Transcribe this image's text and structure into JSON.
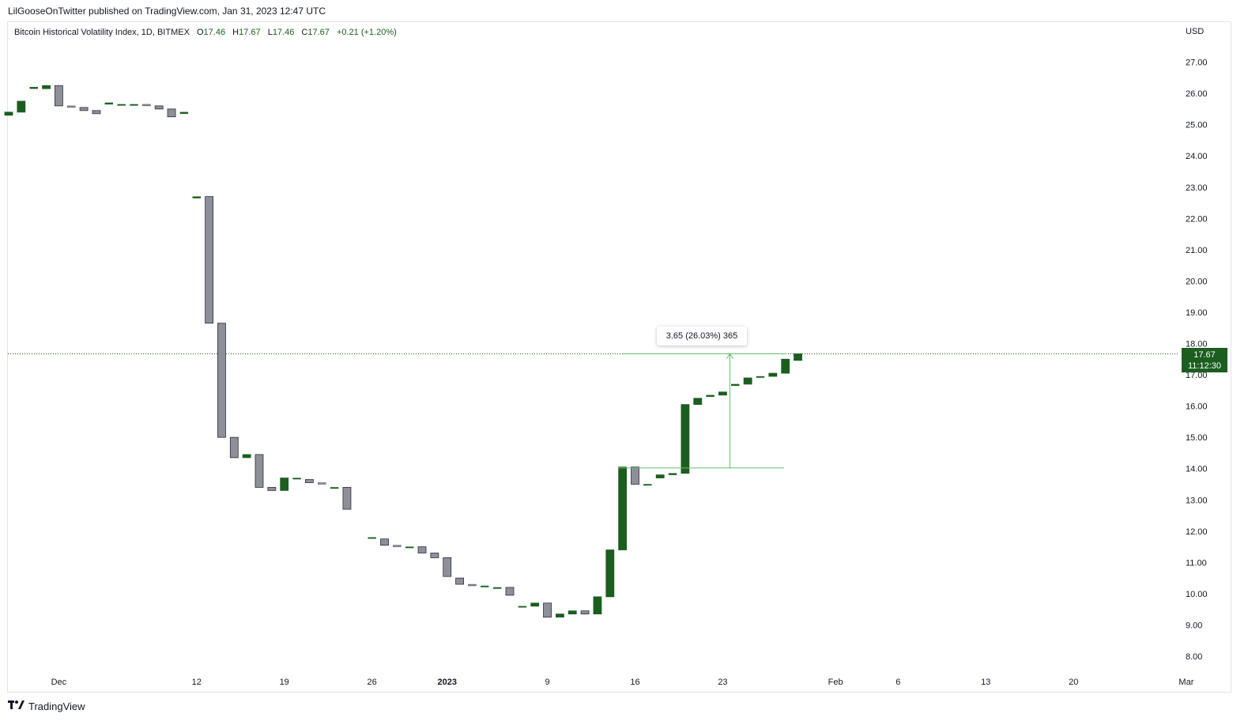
{
  "header": {
    "published": "LilGooseOnTwitter published on TradingView.com, Jan 31, 2023 12:47 UTC"
  },
  "legend": {
    "symbol": "Bitcoin Historical Volatility Index, 1D, BITMEX",
    "o_label": "O",
    "o_value": "17.46",
    "h_label": "H",
    "h_value": "17.67",
    "l_label": "L",
    "l_value": "17.46",
    "c_label": "C",
    "c_value": "17.67",
    "change": "+0.21 (+1.20%)"
  },
  "currency": "USD",
  "price_tag": {
    "price": "17.67",
    "countdown": "11:12:30"
  },
  "measure": {
    "label": "3.65 (26.03%) 365"
  },
  "footer": {
    "brand": "TradingView",
    "logo_icon": "tradingview-logo-icon"
  },
  "colors": {
    "up": "#1b5e20",
    "down": "#8e9099",
    "measure": "#66bb6a",
    "price_line": "#1b5e20"
  },
  "chart_data": {
    "type": "candlestick",
    "title": "Bitcoin Historical Volatility Index, 1D, BITMEX",
    "ylim": [
      7.6,
      28.1
    ],
    "y_ticks": [
      "27.00",
      "26.00",
      "25.00",
      "24.00",
      "23.00",
      "22.00",
      "21.00",
      "20.00",
      "19.00",
      "18.00",
      "17.00",
      "16.00",
      "15.00",
      "14.00",
      "13.00",
      "12.00",
      "11.00",
      "10.00",
      "9.00",
      "8.00"
    ],
    "x_ticks": [
      "Dec",
      "12",
      "19",
      "26",
      "2023",
      "9",
      "16",
      "23",
      "Feb",
      "6",
      "13",
      "20",
      "Mar"
    ],
    "candles": [
      {
        "date": "2022-11-27",
        "open": 25.3,
        "close": 25.4
      },
      {
        "date": "2022-11-28",
        "open": 25.4,
        "close": 25.75
      },
      {
        "date": "2022-11-29",
        "open": 26.15,
        "close": 26.2
      },
      {
        "date": "2022-11-30",
        "open": 26.15,
        "close": 26.25
      },
      {
        "date": "2022-12-01",
        "open": 26.25,
        "close": 25.6
      },
      {
        "date": "2022-12-02",
        "open": 25.6,
        "close": 25.55
      },
      {
        "date": "2022-12-03",
        "open": 25.55,
        "close": 25.45
      },
      {
        "date": "2022-12-04",
        "open": 25.45,
        "close": 25.35
      },
      {
        "date": "2022-12-05",
        "open": 25.65,
        "close": 25.7
      },
      {
        "date": "2022-12-06",
        "open": 25.65,
        "close": 25.65
      },
      {
        "date": "2022-12-07",
        "open": 25.65,
        "close": 25.65
      },
      {
        "date": "2022-12-08",
        "open": 25.65,
        "close": 25.6
      },
      {
        "date": "2022-12-09",
        "open": 25.6,
        "close": 25.5
      },
      {
        "date": "2022-12-10",
        "open": 25.5,
        "close": 25.25
      },
      {
        "date": "2022-12-11",
        "open": 25.35,
        "close": 25.4
      },
      {
        "date": "2022-12-12",
        "open": 22.65,
        "close": 22.7
      },
      {
        "date": "2022-12-13",
        "open": 22.7,
        "close": 18.65
      },
      {
        "date": "2022-12-14",
        "open": 18.65,
        "close": 15.0
      },
      {
        "date": "2022-12-15",
        "open": 15.0,
        "close": 14.35
      },
      {
        "date": "2022-12-16",
        "open": 14.35,
        "close": 14.45
      },
      {
        "date": "2022-12-17",
        "open": 14.45,
        "close": 13.4
      },
      {
        "date": "2022-12-18",
        "open": 13.4,
        "close": 13.3
      },
      {
        "date": "2022-12-19",
        "open": 13.3,
        "close": 13.7
      },
      {
        "date": "2022-12-20",
        "open": 13.7,
        "close": 13.7
      },
      {
        "date": "2022-12-21",
        "open": 13.65,
        "close": 13.55
      },
      {
        "date": "2022-12-22",
        "open": 13.55,
        "close": 13.5
      },
      {
        "date": "2022-12-23",
        "open": 13.4,
        "close": 13.4
      },
      {
        "date": "2022-12-24",
        "open": 13.4,
        "close": 12.7
      },
      {
        "date": "2022-12-26",
        "open": 11.8,
        "close": 11.8
      },
      {
        "date": "2022-12-27",
        "open": 11.75,
        "close": 11.55
      },
      {
        "date": "2022-12-28",
        "open": 11.55,
        "close": 11.5
      },
      {
        "date": "2022-12-29",
        "open": 11.5,
        "close": 11.5
      },
      {
        "date": "2022-12-30",
        "open": 11.5,
        "close": 11.3
      },
      {
        "date": "2022-12-31",
        "open": 11.3,
        "close": 11.15
      },
      {
        "date": "2023-01-01",
        "open": 11.15,
        "close": 10.55
      },
      {
        "date": "2023-01-02",
        "open": 10.5,
        "close": 10.3
      },
      {
        "date": "2023-01-03",
        "open": 10.3,
        "close": 10.25
      },
      {
        "date": "2023-01-04",
        "open": 10.25,
        "close": 10.25
      },
      {
        "date": "2023-01-05",
        "open": 10.2,
        "close": 10.2
      },
      {
        "date": "2023-01-06",
        "open": 10.2,
        "close": 9.95
      },
      {
        "date": "2023-01-07",
        "open": 9.6,
        "close": 9.6
      },
      {
        "date": "2023-01-08",
        "open": 9.6,
        "close": 9.7
      },
      {
        "date": "2023-01-09",
        "open": 9.7,
        "close": 9.25
      },
      {
        "date": "2023-01-10",
        "open": 9.25,
        "close": 9.35
      },
      {
        "date": "2023-01-11",
        "open": 9.35,
        "close": 9.45
      },
      {
        "date": "2023-01-12",
        "open": 9.45,
        "close": 9.35
      },
      {
        "date": "2023-01-13",
        "open": 9.35,
        "close": 9.9
      },
      {
        "date": "2023-01-14",
        "open": 9.9,
        "close": 11.4
      },
      {
        "date": "2023-01-15",
        "open": 11.4,
        "close": 14.05
      },
      {
        "date": "2023-01-16",
        "open": 14.05,
        "close": 13.5
      },
      {
        "date": "2023-01-17",
        "open": 13.5,
        "close": 13.5
      },
      {
        "date": "2023-01-18",
        "open": 13.7,
        "close": 13.8
      },
      {
        "date": "2023-01-19",
        "open": 13.8,
        "close": 13.85
      },
      {
        "date": "2023-01-20",
        "open": 13.85,
        "close": 16.05
      },
      {
        "date": "2023-01-21",
        "open": 16.05,
        "close": 16.25
      },
      {
        "date": "2023-01-22",
        "open": 16.3,
        "close": 16.35
      },
      {
        "date": "2023-01-23",
        "open": 16.35,
        "close": 16.45
      },
      {
        "date": "2023-01-24",
        "open": 16.65,
        "close": 16.7
      },
      {
        "date": "2023-01-25",
        "open": 16.7,
        "close": 16.9
      },
      {
        "date": "2023-01-26",
        "open": 16.95,
        "close": 16.95
      },
      {
        "date": "2023-01-27",
        "open": 16.95,
        "close": 17.05
      },
      {
        "date": "2023-01-28",
        "open": 17.05,
        "close": 17.5
      },
      {
        "date": "2023-01-29",
        "open": 17.46,
        "close": 17.67
      }
    ],
    "last_price": 17.67,
    "measure": {
      "from": 14.02,
      "to": 17.67,
      "change": 3.65,
      "percent": 26.03,
      "bars": 365
    }
  }
}
